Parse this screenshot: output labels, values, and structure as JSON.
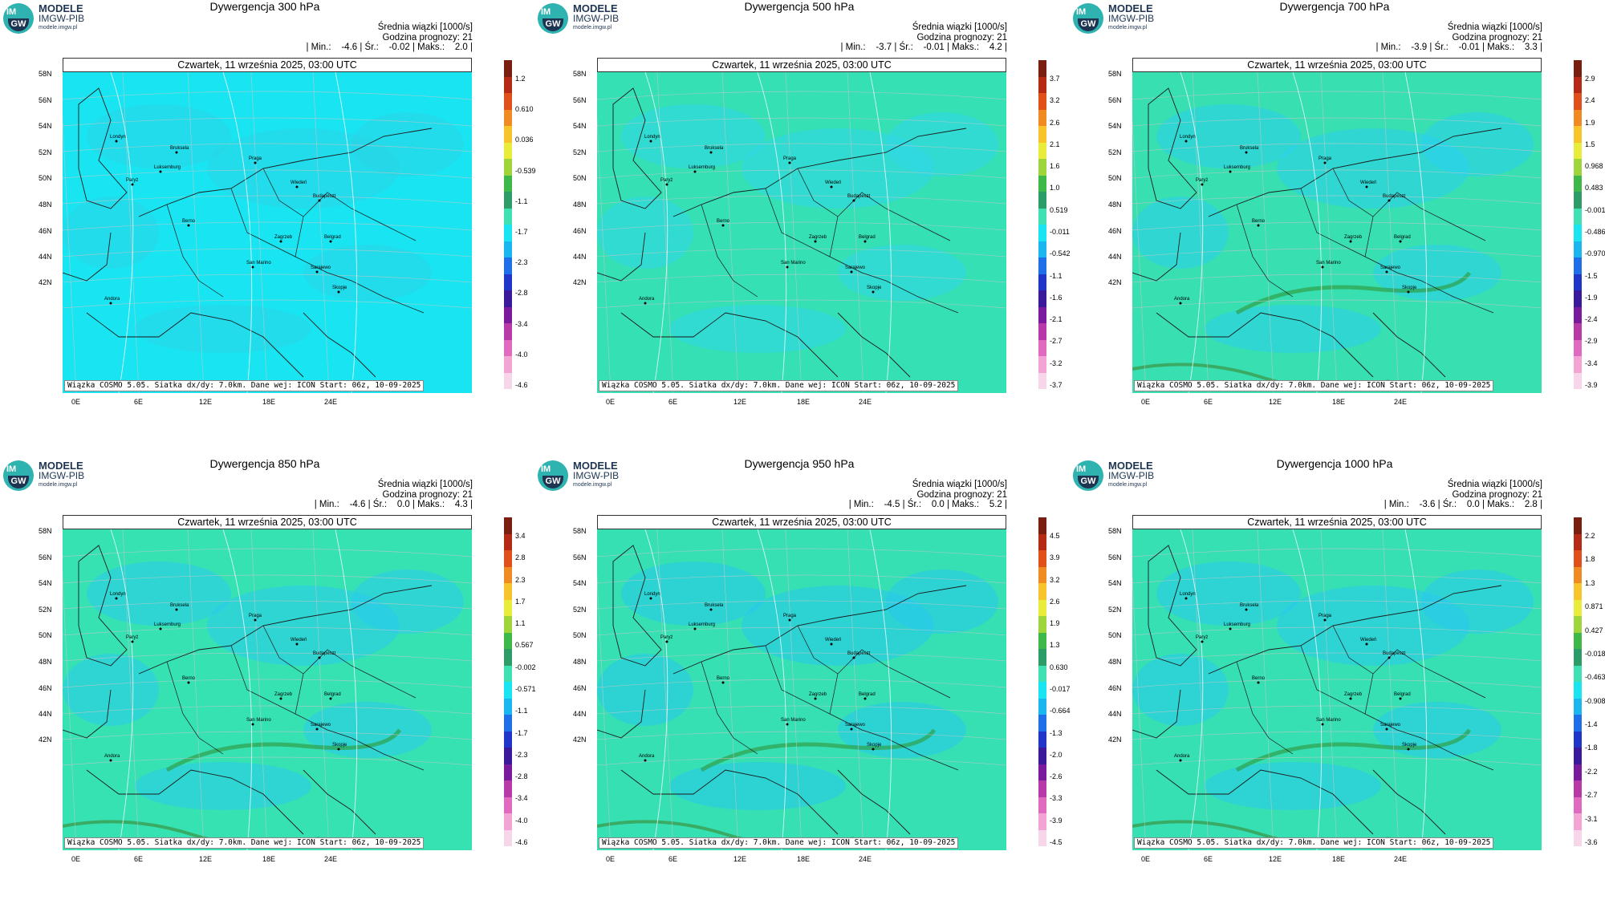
{
  "logo": {
    "top": "IM",
    "bottom": "GW",
    "line1": "MODELE",
    "line2": "IMGW-PIB",
    "line3": "modele.imgw.pl"
  },
  "date": "Czwartek, 11 września 2025, 03:00 UTC",
  "info_line1": "Średnia wiązki [1000/s]",
  "info_line2": "Godzina prognozy: 21",
  "footer": "Wiązka COSMO 5.05. Siatka dx/dy: 7.0km. Dane wej: ICON Start: 06z, 10-09-2025",
  "lat_labels": [
    "58N",
    "56N",
    "54N",
    "52N",
    "50N",
    "48N",
    "46N",
    "44N",
    "42N"
  ],
  "lon_labels": [
    "0E",
    "6E",
    "12E",
    "18E",
    "24E"
  ],
  "panels": [
    {
      "title": "Dywergencja 300 hPa",
      "stats": "| Min.:    -4.6 | Śr.:    -0.02 | Maks.:    2.0 |",
      "ticks": [
        "1.2",
        "0.610",
        "0.036",
        "-0.539",
        "-1.1",
        "-1.7",
        "-2.3",
        "-2.8",
        "-3.4",
        "-4.0",
        "-4.6"
      ],
      "base_color": "#19e5f2",
      "accent": "#2ad3e6"
    },
    {
      "title": "Dywergencja 500 hPa",
      "stats": "| Min.:    -3.7 | Śr.:    -0.01 | Maks.:    4.2 |",
      "ticks": [
        "3.7",
        "3.2",
        "2.6",
        "2.1",
        "1.6",
        "1.0",
        "0.519",
        "-0.011",
        "-0.542",
        "-1.1",
        "-1.6",
        "-2.1",
        "-2.7",
        "-3.2",
        "-3.7"
      ],
      "base_color": "#34e0b4",
      "accent": "#2fd7ea"
    },
    {
      "title": "Dywergencja 700 hPa",
      "stats": "| Min.:    -3.9 | Śr.:    -0.01 | Maks.:    3.3 |",
      "ticks": [
        "2.9",
        "2.4",
        "1.9",
        "1.5",
        "0.968",
        "0.483",
        "-0.001",
        "-0.486",
        "-0.970",
        "-1.5",
        "-1.9",
        "-2.4",
        "-2.9",
        "-3.4",
        "-3.9"
      ],
      "base_color": "#38dfb0",
      "accent": "#2ad0ee"
    },
    {
      "title": "Dywergencja 850 hPa",
      "stats": "| Min.:    -4.6 | Śr.:    0.0 | Maks.:    4.3 |",
      "ticks": [
        "3.4",
        "2.8",
        "2.3",
        "1.7",
        "1.1",
        "0.567",
        "-0.002",
        "-0.571",
        "-1.1",
        "-1.7",
        "-2.3",
        "-2.8",
        "-3.4",
        "-4.0",
        "-4.6"
      ],
      "base_color": "#36e2b2",
      "accent": "#28cbee"
    },
    {
      "title": "Dywergencja 950 hPa",
      "stats": "| Min.:    -4.5 | Śr.:    0.0 | Maks.:    5.2 |",
      "ticks": [
        "4.5",
        "3.9",
        "3.2",
        "2.6",
        "1.9",
        "1.3",
        "0.630",
        "-0.017",
        "-0.664",
        "-1.3",
        "-2.0",
        "-2.6",
        "-3.3",
        "-3.9",
        "-4.5"
      ],
      "base_color": "#36e0b2",
      "accent": "#27c8ee"
    },
    {
      "title": "Dywergencja 1000 hPa",
      "stats": "| Min.:    -3.6 | Śr.:    0.0 | Maks.:    2.8 |",
      "ticks": [
        "2.2",
        "1.8",
        "1.3",
        "0.871",
        "0.427",
        "-0.018",
        "-0.463",
        "-0.908",
        "-1.4",
        "-1.8",
        "-2.2",
        "-2.7",
        "-3.1",
        "-3.6"
      ],
      "base_color": "#36e0b2",
      "accent": "#28c8ee"
    }
  ],
  "cities": [
    "Londyn",
    "Paryż",
    "Bruksela",
    "Luksemburg",
    "Praga",
    "Wiedeń",
    "Budapeszt",
    "Berno",
    "Zagrzeb",
    "Belgrad",
    "San Marino",
    "Sarajewo",
    "Skopje",
    "Andora"
  ]
}
